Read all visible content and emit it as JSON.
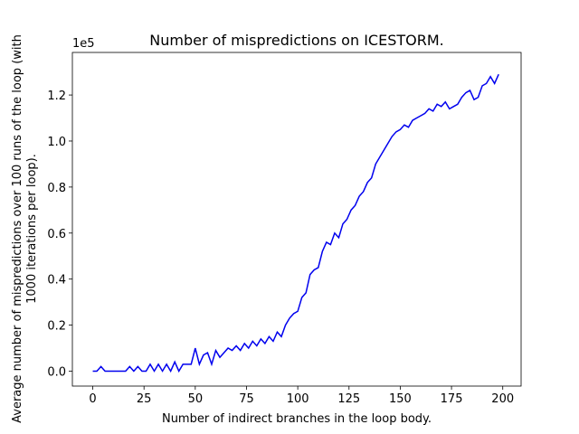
{
  "chart_data": {
    "type": "line",
    "title": "Number of mispredictions on ICESTORM.",
    "xlabel": "Number of indirect branches in the loop body.",
    "ylabel": [
      "Average number of mispredictions over 100 runs of the loop (with",
      "1000 iterations per loop)."
    ],
    "y_offset_label": "1e5",
    "x": [
      0,
      2,
      4,
      6,
      8,
      10,
      12,
      14,
      16,
      18,
      20,
      22,
      24,
      26,
      28,
      30,
      32,
      34,
      36,
      38,
      40,
      42,
      44,
      46,
      48,
      50,
      52,
      54,
      56,
      58,
      60,
      62,
      64,
      66,
      68,
      70,
      72,
      74,
      76,
      78,
      80,
      82,
      84,
      86,
      88,
      90,
      92,
      94,
      96,
      98,
      100,
      102,
      104,
      106,
      108,
      110,
      112,
      114,
      116,
      118,
      120,
      122,
      124,
      126,
      128,
      130,
      132,
      134,
      136,
      138,
      140,
      142,
      144,
      146,
      148,
      150,
      152,
      154,
      156,
      158,
      160,
      162,
      164,
      166,
      168,
      170,
      172,
      174,
      176,
      178,
      180,
      182,
      184,
      186,
      188,
      190,
      192,
      194,
      196,
      198
    ],
    "series": [
      {
        "name": "ICESTORM",
        "color": "#0000ee",
        "values": [
          0,
          0,
          0.02,
          0,
          0,
          0,
          0,
          0,
          0,
          0.02,
          0,
          0.02,
          0,
          0,
          0.03,
          0,
          0.03,
          0,
          0.03,
          0,
          0.04,
          0,
          0.03,
          0.03,
          0.03,
          0.1,
          0.03,
          0.07,
          0.08,
          0.03,
          0.09,
          0.06,
          0.08,
          0.1,
          0.09,
          0.11,
          0.09,
          0.12,
          0.1,
          0.13,
          0.11,
          0.14,
          0.12,
          0.15,
          0.13,
          0.17,
          0.15,
          0.2,
          0.23,
          0.25,
          0.26,
          0.32,
          0.34,
          0.42,
          0.44,
          0.45,
          0.52,
          0.56,
          0.55,
          0.6,
          0.58,
          0.64,
          0.66,
          0.7,
          0.72,
          0.76,
          0.78,
          0.82,
          0.84,
          0.9,
          0.93,
          0.96,
          0.99,
          1.02,
          1.04,
          1.05,
          1.07,
          1.06,
          1.09,
          1.1,
          1.11,
          1.12,
          1.14,
          1.13,
          1.16,
          1.15,
          1.17,
          1.14,
          1.15,
          1.16,
          1.19,
          1.21,
          1.22,
          1.18,
          1.19,
          1.24,
          1.25,
          1.28,
          1.25,
          1.29
        ]
      }
    ],
    "xlim": [
      -9.95,
      208.95
    ],
    "xticks": [
      0,
      25,
      50,
      75,
      100,
      125,
      150,
      175,
      200
    ],
    "ylim": [
      -0.065,
      1.385
    ],
    "yticks": [
      {
        "value": 0,
        "label": "0.0"
      },
      {
        "value": 0.2,
        "label": "0.2"
      },
      {
        "value": 0.4,
        "label": "0.4"
      },
      {
        "value": 0.6,
        "label": "0.6"
      },
      {
        "value": 0.8,
        "label": "0.8"
      },
      {
        "value": 1.0,
        "label": "1.0"
      },
      {
        "value": 1.2,
        "label": "1.2"
      }
    ],
    "grid": false
  }
}
